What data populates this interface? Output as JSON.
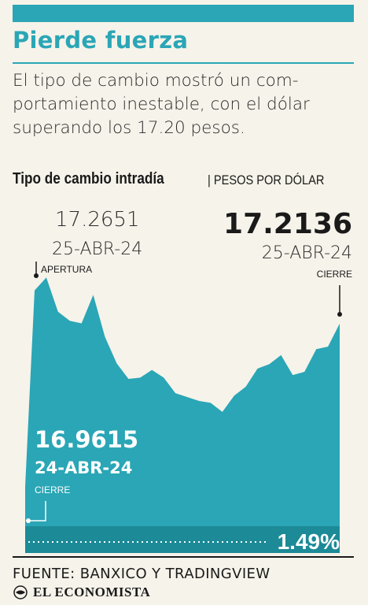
{
  "header": {
    "title": "Pierde fuerza",
    "subtitle": "El tipo de cambio mostró un com-portamiento inestable, con el dólar superando los 17.20 pesos."
  },
  "colors": {
    "accent": "#2aa6b6",
    "area": "#2aa6b6",
    "band": "#1c8a97",
    "ink": "#1a1a1a"
  },
  "chart_data": {
    "type": "area",
    "title": "Tipo de cambio intradía",
    "units": "| PESOS POR DÓLAR",
    "ylim": [
      16.9,
      17.3
    ],
    "grid": false,
    "values": [
      16.9615,
      17.2651,
      17.285,
      17.232,
      17.218,
      17.214,
      17.258,
      17.193,
      17.152,
      17.128,
      17.13,
      17.142,
      17.13,
      17.106,
      17.1,
      17.094,
      17.091,
      17.077,
      17.102,
      17.116,
      17.144,
      17.151,
      17.165,
      17.134,
      17.139,
      17.174,
      17.178,
      17.2136
    ],
    "open": {
      "value": "17.2651",
      "date": "25-ABR-24",
      "label": "APERTURA"
    },
    "close": {
      "value": "17.2136",
      "date": "25-ABR-24",
      "label": "CIERRE"
    },
    "prev_close": {
      "value": "16.9615",
      "date": "24-ABR-24",
      "label": "CIERRE"
    },
    "change": "1.49%"
  },
  "footer": {
    "source": "FUENTE: BANXICO Y TRADINGVIEW",
    "brand": "EL ECONOMISTA"
  }
}
